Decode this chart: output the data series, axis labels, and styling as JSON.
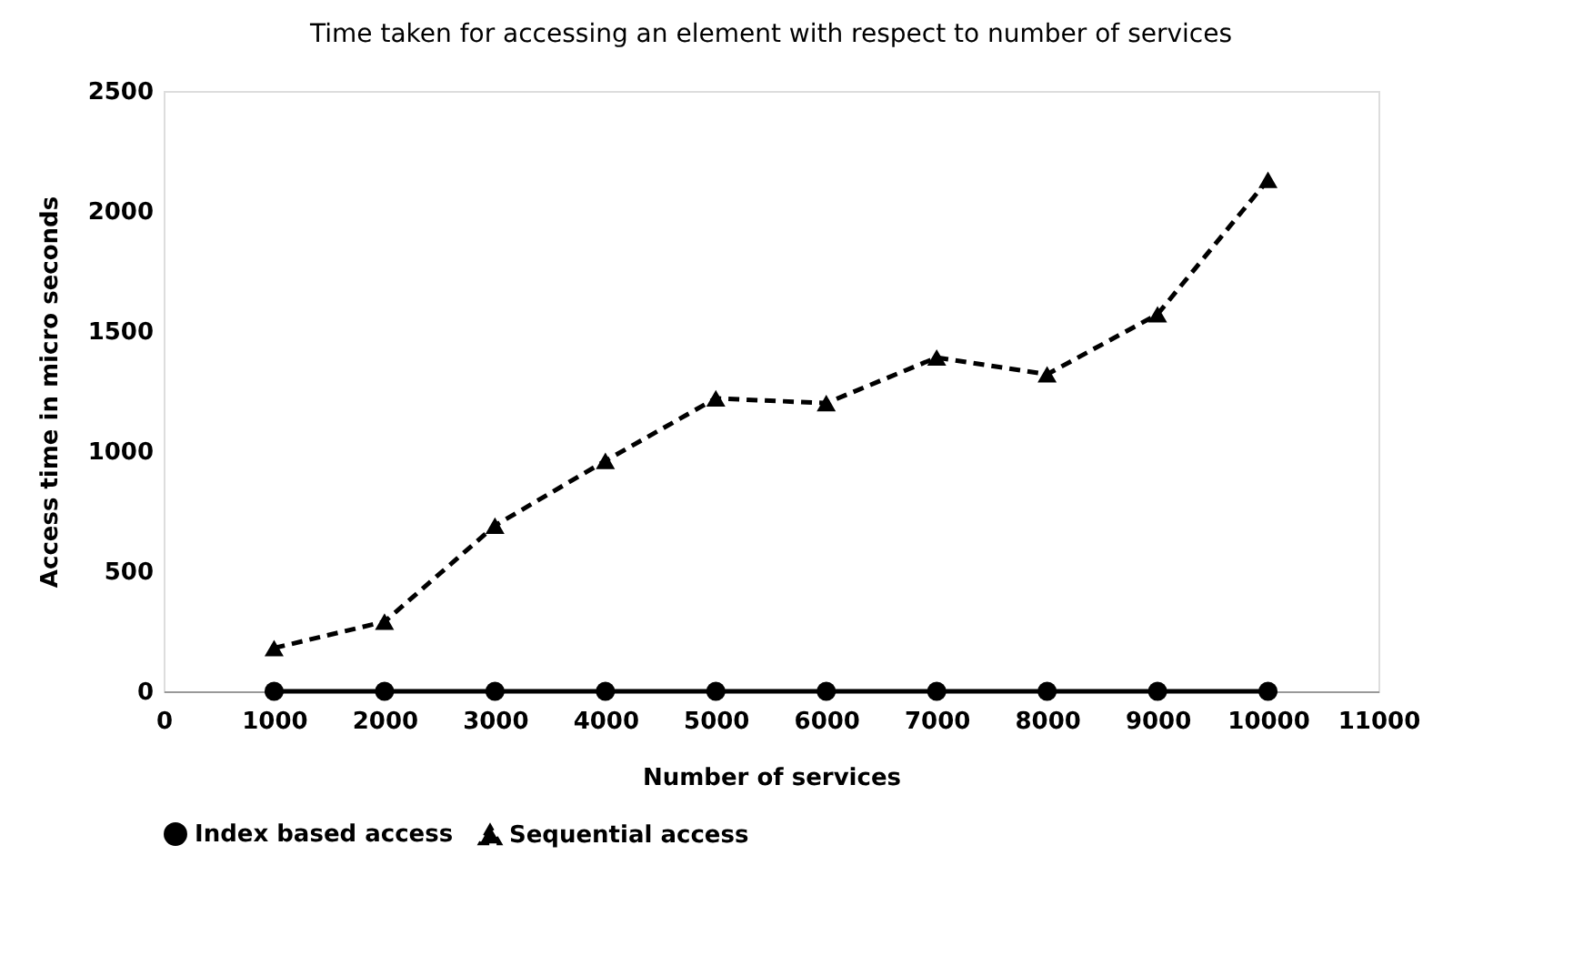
{
  "chart_data": {
    "type": "line",
    "title": "Time taken for accessing an element  with respect to number of services",
    "xlabel": "Number of services",
    "ylabel": "Access time in micro seconds",
    "x": [
      1000,
      2000,
      3000,
      4000,
      5000,
      6000,
      7000,
      8000,
      9000,
      10000
    ],
    "series": [
      {
        "name": "Index based access",
        "color": "#000000",
        "marker": "circle",
        "line_style": "solid",
        "values": [
          0,
          0,
          0,
          0,
          0,
          0,
          0,
          0,
          0,
          0
        ]
      },
      {
        "name": "Sequential access",
        "color": "#000000",
        "marker": "triangle",
        "line_style": "dashed",
        "values": [
          180,
          290,
          690,
          960,
          1220,
          1200,
          1390,
          1320,
          1570,
          2130
        ]
      }
    ],
    "xlim": [
      0,
      11000
    ],
    "xticks": [
      0,
      1000,
      2000,
      3000,
      4000,
      5000,
      6000,
      7000,
      8000,
      9000,
      10000,
      11000
    ],
    "ylim": [
      0,
      2500
    ],
    "yticks": [
      0,
      500,
      1000,
      1500,
      2000,
      2500
    ],
    "grid": false,
    "legend": "bottom"
  }
}
